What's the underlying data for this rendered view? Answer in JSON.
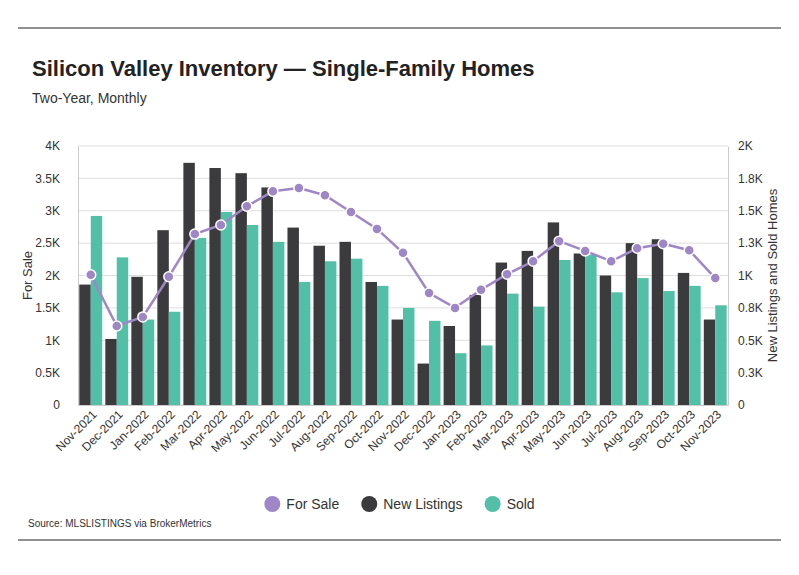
{
  "chart_data": {
    "type": "bar",
    "title": "Silicon Valley Inventory — Single-Family Homes",
    "subtitle": "Two-Year, Monthly",
    "source": "Source:  MLSLISTINGS via BrokerMetrics",
    "y_label": "For Sale",
    "y2_label": "New Listings and Sold Homes",
    "categories": [
      "Nov-2021",
      "Dec-2021",
      "Jan-2022",
      "Feb-2022",
      "Mar-2022",
      "Apr-2022",
      "May-2022",
      "Jun-2022",
      "Jul-2022",
      "Aug-2022",
      "Sep-2022",
      "Oct-2022",
      "Nov-2022",
      "Dec-2022",
      "Jan-2023",
      "Feb-2023",
      "Mar-2023",
      "Apr-2023",
      "May-2023",
      "Jun-2023",
      "Jul-2023",
      "Aug-2023",
      "Sep-2023",
      "Oct-2023",
      "Nov-2023"
    ],
    "series": [
      {
        "name": "For Sale",
        "type": "line",
        "marker": "circle",
        "color": "#9f86c6",
        "axis": "y",
        "values": [
          2010,
          1220,
          1360,
          1980,
          2640,
          2780,
          3070,
          3300,
          3350,
          3240,
          2980,
          2720,
          2350,
          1730,
          1500,
          1780,
          2020,
          2220,
          2530,
          2380,
          2220,
          2420,
          2490,
          2390,
          1960
        ]
      },
      {
        "name": "New Listings",
        "type": "bar",
        "color": "#3b3b3d",
        "axis": "y2",
        "values": [
          930,
          510,
          990,
          1350,
          1870,
          1830,
          1790,
          1680,
          1370,
          1230,
          1260,
          950,
          660,
          320,
          610,
          850,
          1100,
          1190,
          1410,
          1170,
          1000,
          1250,
          1280,
          1020,
          660
        ]
      },
      {
        "name": "Sold",
        "type": "bar",
        "color": "#52c0a6",
        "axis": "y2",
        "values": [
          1460,
          1140,
          660,
          720,
          1290,
          1490,
          1390,
          1260,
          950,
          1110,
          1130,
          920,
          750,
          650,
          400,
          460,
          860,
          760,
          1120,
          1160,
          870,
          980,
          880,
          920,
          770
        ]
      }
    ],
    "ylim": [
      0,
      4000
    ],
    "yticks": [
      0,
      {
        "value": 500,
        "label": "0.5K"
      },
      {
        "value": 1000,
        "label": "1K"
      },
      {
        "value": 1500,
        "label": "1.5K"
      },
      {
        "value": 2000,
        "label": "2K"
      },
      {
        "value": 2500,
        "label": "2.5K"
      },
      {
        "value": 3000,
        "label": "3K"
      },
      {
        "value": 3500,
        "label": "3.5K"
      },
      {
        "value": 4000,
        "label": "4K"
      }
    ],
    "y2lim": [
      0,
      2000
    ],
    "y2ticks": [
      0,
      {
        "value": 250,
        "label": "0.3K"
      },
      {
        "value": 500,
        "label": "0.5K"
      },
      {
        "value": 750,
        "label": "0.8K"
      },
      {
        "value": 1000,
        "label": "1K"
      },
      {
        "value": 1250,
        "label": "1.3K"
      },
      {
        "value": 1500,
        "label": "1.5K"
      },
      {
        "value": 1750,
        "label": "1.8K"
      },
      {
        "value": 2000,
        "label": "2K"
      }
    ],
    "grid": true,
    "legend": "bottom"
  }
}
